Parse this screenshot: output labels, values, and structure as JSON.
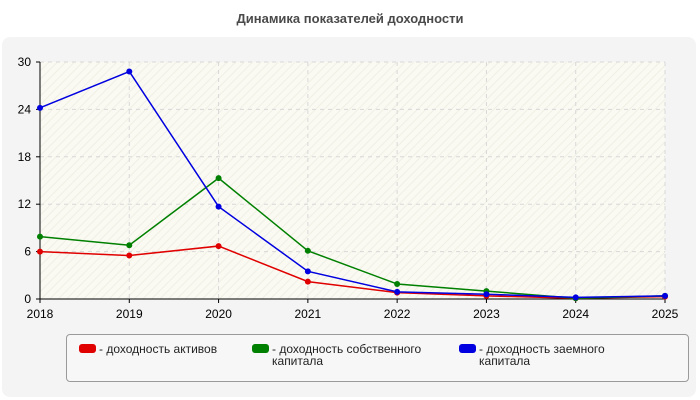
{
  "chart_data": {
    "type": "line",
    "title": "Динамика показателей доходности",
    "x": [
      "2018",
      "2019",
      "2020",
      "2021",
      "2022",
      "2023",
      "2024",
      "2025"
    ],
    "ylim": [
      0,
      30
    ],
    "yticks": [
      "0",
      "6",
      "12",
      "18",
      "24",
      "30"
    ],
    "grid": true,
    "legend_position": "bottom",
    "series": [
      {
        "name": "- доходность активов",
        "color": "#e00000",
        "values": [
          6.0,
          5.5,
          6.7,
          2.2,
          0.8,
          0.4,
          0.1,
          0.3
        ]
      },
      {
        "name": "- доходность собственного\nкапитала",
        "color": "#008000",
        "values": [
          7.9,
          6.8,
          15.3,
          6.1,
          1.9,
          1.0,
          0.1,
          0.4
        ]
      },
      {
        "name": "- доходность заемного\nкапитала",
        "color": "#0000e0",
        "values": [
          24.2,
          28.8,
          11.7,
          3.5,
          0.9,
          0.6,
          0.2,
          0.4
        ]
      }
    ]
  }
}
